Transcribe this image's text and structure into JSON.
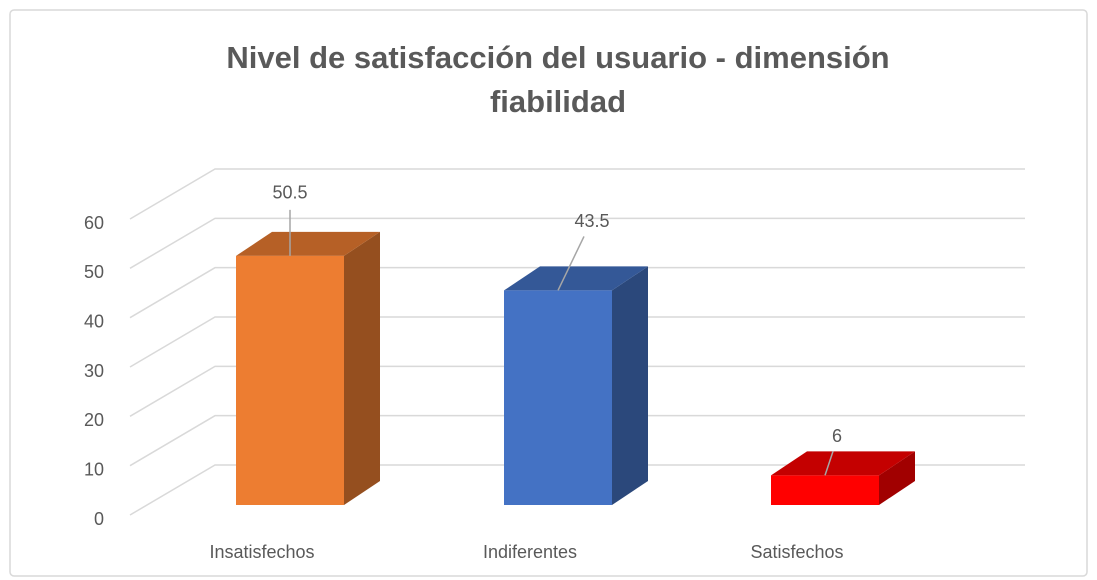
{
  "chart_data": {
    "type": "bar3d",
    "title": "Nivel de satisfacción del usuario - dimensión fiabilidad",
    "categories": [
      "Insatisfechos",
      "Indiferentes",
      "Satisfechos"
    ],
    "values": [
      50.5,
      43.5,
      6
    ],
    "colors": [
      "#ed7d31",
      "#4472c4",
      "#ff0000"
    ],
    "ylim": [
      0,
      60
    ],
    "yticks": [
      0,
      10,
      20,
      30,
      40,
      50,
      60
    ],
    "grid": true
  }
}
